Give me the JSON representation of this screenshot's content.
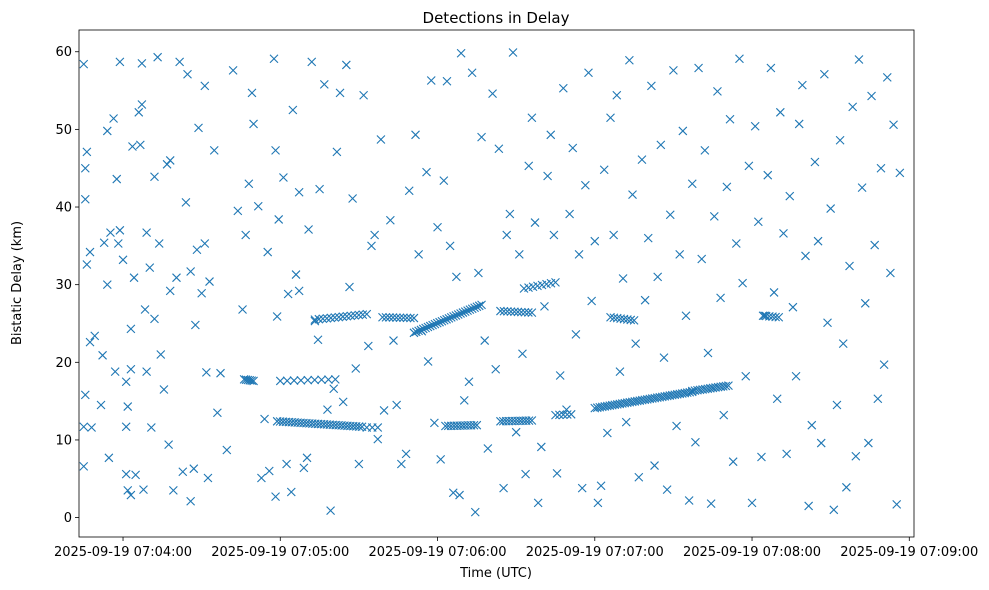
{
  "chart_data": {
    "type": "scatter",
    "title": "Detections in Delay",
    "xlabel": "Time (UTC)",
    "ylabel": "Bistatic Delay (km)",
    "marker": "x",
    "color": "#1f77b4",
    "xlim_minutes": [
      -0.28,
      5.03
    ],
    "ylim": [
      -2.5,
      62.8
    ],
    "x_ticks": [
      {
        "value": 0,
        "label": "2025-09-19 07:04:00"
      },
      {
        "value": 1,
        "label": "2025-09-19 07:05:00"
      },
      {
        "value": 2,
        "label": "2025-09-19 07:06:00"
      },
      {
        "value": 3,
        "label": "2025-09-19 07:07:00"
      },
      {
        "value": 4,
        "label": "2025-09-19 07:08:00"
      },
      {
        "value": 5,
        "label": "2025-09-19 07:09:00"
      }
    ],
    "y_ticks": [
      {
        "value": 0,
        "label": "0"
      },
      {
        "value": 10,
        "label": "10"
      },
      {
        "value": 20,
        "label": "20"
      },
      {
        "value": 30,
        "label": "30"
      },
      {
        "value": 40,
        "label": "40"
      },
      {
        "value": 50,
        "label": "50"
      },
      {
        "value": 60,
        "label": "60"
      }
    ],
    "x_unit": "minutes after 2025-09-19 07:04:00",
    "tracks": [
      {
        "name": "track-a",
        "x_start": 0.77,
        "x_end": 0.83,
        "y_start": 17.8,
        "y_end": 17.6,
        "count": 6
      },
      {
        "name": "track-b",
        "x_start": 1.0,
        "x_end": 1.35,
        "y_start": 17.6,
        "y_end": 17.8,
        "count": 9
      },
      {
        "name": "track-c",
        "x_start": 0.98,
        "x_end": 1.52,
        "y_start": 12.4,
        "y_end": 11.7,
        "count": 30
      },
      {
        "name": "track-d",
        "x_start": 1.22,
        "x_end": 1.55,
        "y_start": 25.5,
        "y_end": 26.2,
        "count": 14
      },
      {
        "name": "track-e",
        "x_start": 1.65,
        "x_end": 1.85,
        "y_start": 25.8,
        "y_end": 25.7,
        "count": 10
      },
      {
        "name": "track-f",
        "x_start": 1.85,
        "x_end": 2.28,
        "y_start": 23.8,
        "y_end": 27.4,
        "count": 30
      },
      {
        "name": "track-g",
        "x_start": 1.55,
        "x_end": 1.62,
        "y_start": 11.6,
        "y_end": 11.6,
        "count": 3
      },
      {
        "name": "track-h",
        "x_start": 2.05,
        "x_end": 2.25,
        "y_start": 11.8,
        "y_end": 11.9,
        "count": 12
      },
      {
        "name": "track-i",
        "x_start": 2.4,
        "x_end": 2.6,
        "y_start": 12.4,
        "y_end": 12.5,
        "count": 12
      },
      {
        "name": "track-j",
        "x_start": 2.4,
        "x_end": 2.6,
        "y_start": 26.6,
        "y_end": 26.4,
        "count": 10
      },
      {
        "name": "track-k",
        "x_start": 2.55,
        "x_end": 2.75,
        "y_start": 29.5,
        "y_end": 30.3,
        "count": 8
      },
      {
        "name": "track-l",
        "x_start": 2.75,
        "x_end": 2.85,
        "y_start": 13.2,
        "y_end": 13.3,
        "count": 5
      },
      {
        "name": "track-m",
        "x_start": 3.1,
        "x_end": 3.25,
        "y_start": 25.8,
        "y_end": 25.4,
        "count": 8
      },
      {
        "name": "track-n",
        "x_start": 3.0,
        "x_end": 3.62,
        "y_start": 14.1,
        "y_end": 16.2,
        "count": 40
      },
      {
        "name": "track-o",
        "x_start": 3.62,
        "x_end": 3.85,
        "y_start": 16.3,
        "y_end": 17.0,
        "count": 15
      },
      {
        "name": "track-p",
        "x_start": 4.07,
        "x_end": 4.17,
        "y_start": 26.0,
        "y_end": 25.8,
        "count": 6
      }
    ],
    "scattered_points": [
      [
        -0.25,
        58.4
      ],
      [
        -0.25,
        11.7
      ],
      [
        -0.24,
        15.8
      ],
      [
        -0.25,
        6.6
      ],
      [
        -0.24,
        41.0
      ],
      [
        -0.24,
        45.0
      ],
      [
        -0.23,
        47.1
      ],
      [
        -0.23,
        32.6
      ],
      [
        -0.21,
        34.2
      ],
      [
        -0.21,
        22.6
      ],
      [
        -0.2,
        11.6
      ],
      [
        -0.18,
        23.4
      ],
      [
        -0.14,
        14.5
      ],
      [
        -0.13,
        20.9
      ],
      [
        -0.12,
        35.4
      ],
      [
        -0.1,
        49.8
      ],
      [
        -0.1,
        30.0
      ],
      [
        -0.09,
        7.7
      ],
      [
        -0.08,
        36.7
      ],
      [
        -0.06,
        51.4
      ],
      [
        -0.05,
        18.8
      ],
      [
        -0.04,
        43.6
      ],
      [
        -0.03,
        35.3
      ],
      [
        -0.02,
        58.7
      ],
      [
        -0.02,
        37.0
      ],
      [
        0.0,
        33.2
      ],
      [
        0.02,
        17.5
      ],
      [
        0.02,
        11.7
      ],
      [
        0.02,
        5.6
      ],
      [
        0.03,
        3.5
      ],
      [
        0.03,
        14.3
      ],
      [
        0.05,
        2.9
      ],
      [
        0.05,
        19.1
      ],
      [
        0.05,
        24.3
      ],
      [
        0.06,
        47.8
      ],
      [
        0.07,
        30.9
      ],
      [
        0.08,
        5.5
      ],
      [
        0.1,
        52.2
      ],
      [
        0.11,
        48.0
      ],
      [
        0.12,
        53.2
      ],
      [
        0.12,
        58.5
      ],
      [
        0.13,
        3.6
      ],
      [
        0.14,
        26.8
      ],
      [
        0.15,
        36.7
      ],
      [
        0.15,
        18.8
      ],
      [
        0.17,
        32.2
      ],
      [
        0.18,
        11.6
      ],
      [
        0.2,
        43.9
      ],
      [
        0.2,
        25.6
      ],
      [
        0.22,
        59.3
      ],
      [
        0.23,
        35.3
      ],
      [
        0.24,
        21.0
      ],
      [
        0.26,
        16.5
      ],
      [
        0.28,
        45.5
      ],
      [
        0.29,
        9.4
      ],
      [
        0.3,
        29.2
      ],
      [
        0.3,
        46.0
      ],
      [
        0.32,
        3.5
      ],
      [
        0.34,
        30.9
      ],
      [
        0.36,
        58.7
      ],
      [
        0.38,
        5.9
      ],
      [
        0.4,
        40.6
      ],
      [
        0.41,
        57.1
      ],
      [
        0.43,
        31.7
      ],
      [
        0.43,
        2.1
      ],
      [
        0.45,
        6.3
      ],
      [
        0.46,
        24.8
      ],
      [
        0.47,
        34.5
      ],
      [
        0.48,
        50.2
      ],
      [
        0.5,
        28.9
      ],
      [
        0.52,
        35.3
      ],
      [
        0.52,
        55.6
      ],
      [
        0.53,
        18.7
      ],
      [
        0.54,
        5.1
      ],
      [
        0.55,
        30.4
      ],
      [
        0.58,
        47.3
      ],
      [
        0.6,
        13.5
      ],
      [
        0.62,
        18.6
      ],
      [
        0.66,
        8.7
      ],
      [
        0.7,
        57.6
      ],
      [
        0.73,
        39.5
      ],
      [
        0.76,
        26.8
      ],
      [
        0.78,
        36.4
      ],
      [
        0.8,
        43.0
      ],
      [
        0.82,
        54.7
      ],
      [
        0.83,
        50.7
      ],
      [
        0.86,
        40.1
      ],
      [
        0.88,
        5.1
      ],
      [
        0.9,
        12.7
      ],
      [
        0.92,
        34.2
      ],
      [
        0.93,
        6.0
      ],
      [
        0.96,
        59.1
      ],
      [
        0.97,
        2.7
      ],
      [
        0.97,
        47.3
      ],
      [
        0.98,
        25.9
      ],
      [
        0.99,
        38.4
      ],
      [
        1.02,
        43.8
      ],
      [
        1.04,
        6.9
      ],
      [
        1.05,
        28.8
      ],
      [
        1.07,
        3.3
      ],
      [
        1.08,
        52.5
      ],
      [
        1.1,
        31.3
      ],
      [
        1.12,
        29.2
      ],
      [
        1.12,
        41.9
      ],
      [
        1.15,
        6.4
      ],
      [
        1.17,
        7.7
      ],
      [
        1.18,
        37.1
      ],
      [
        1.2,
        58.7
      ],
      [
        1.22,
        25.3
      ],
      [
        1.24,
        22.9
      ],
      [
        1.25,
        42.3
      ],
      [
        1.28,
        55.8
      ],
      [
        1.3,
        13.9
      ],
      [
        1.32,
        0.9
      ],
      [
        1.34,
        16.6
      ],
      [
        1.36,
        47.1
      ],
      [
        1.38,
        54.7
      ],
      [
        1.4,
        14.9
      ],
      [
        1.42,
        58.3
      ],
      [
        1.44,
        29.7
      ],
      [
        1.46,
        41.1
      ],
      [
        1.48,
        19.2
      ],
      [
        1.5,
        6.9
      ],
      [
        1.53,
        54.4
      ],
      [
        1.56,
        22.1
      ],
      [
        1.58,
        35.0
      ],
      [
        1.6,
        36.4
      ],
      [
        1.62,
        10.1
      ],
      [
        1.64,
        48.7
      ],
      [
        1.66,
        13.8
      ],
      [
        1.7,
        38.3
      ],
      [
        1.72,
        22.8
      ],
      [
        1.74,
        14.5
      ],
      [
        1.77,
        6.9
      ],
      [
        1.8,
        8.2
      ],
      [
        1.82,
        42.1
      ],
      [
        1.86,
        49.3
      ],
      [
        1.88,
        33.9
      ],
      [
        1.9,
        24.0
      ],
      [
        1.93,
        44.5
      ],
      [
        1.94,
        20.1
      ],
      [
        1.96,
        56.3
      ],
      [
        1.98,
        12.2
      ],
      [
        2.0,
        37.4
      ],
      [
        2.02,
        7.5
      ],
      [
        2.04,
        43.4
      ],
      [
        2.06,
        56.2
      ],
      [
        2.08,
        35.0
      ],
      [
        2.1,
        3.2
      ],
      [
        2.12,
        31.0
      ],
      [
        2.14,
        2.9
      ],
      [
        2.15,
        59.8
      ],
      [
        2.17,
        15.1
      ],
      [
        2.2,
        17.5
      ],
      [
        2.22,
        57.3
      ],
      [
        2.24,
        0.7
      ],
      [
        2.26,
        31.5
      ],
      [
        2.28,
        49.0
      ],
      [
        2.3,
        22.8
      ],
      [
        2.32,
        8.9
      ],
      [
        2.35,
        54.6
      ],
      [
        2.37,
        19.1
      ],
      [
        2.39,
        47.5
      ],
      [
        2.42,
        3.8
      ],
      [
        2.44,
        36.4
      ],
      [
        2.46,
        39.1
      ],
      [
        2.48,
        59.9
      ],
      [
        2.5,
        11.0
      ],
      [
        2.52,
        33.9
      ],
      [
        2.54,
        21.1
      ],
      [
        2.56,
        5.6
      ],
      [
        2.58,
        45.3
      ],
      [
        2.6,
        51.5
      ],
      [
        2.62,
        38.0
      ],
      [
        2.64,
        1.9
      ],
      [
        2.66,
        9.1
      ],
      [
        2.68,
        27.2
      ],
      [
        2.7,
        44.0
      ],
      [
        2.72,
        49.3
      ],
      [
        2.74,
        36.4
      ],
      [
        2.76,
        5.7
      ],
      [
        2.78,
        18.3
      ],
      [
        2.8,
        55.3
      ],
      [
        2.82,
        13.9
      ],
      [
        2.84,
        39.1
      ],
      [
        2.86,
        47.6
      ],
      [
        2.88,
        23.6
      ],
      [
        2.9,
        33.9
      ],
      [
        2.92,
        3.8
      ],
      [
        2.94,
        42.8
      ],
      [
        2.96,
        57.3
      ],
      [
        2.98,
        27.9
      ],
      [
        3.0,
        35.6
      ],
      [
        3.02,
        1.9
      ],
      [
        3.04,
        4.1
      ],
      [
        3.06,
        44.8
      ],
      [
        3.08,
        10.9
      ],
      [
        3.1,
        51.5
      ],
      [
        3.12,
        36.4
      ],
      [
        3.14,
        54.4
      ],
      [
        3.16,
        18.8
      ],
      [
        3.18,
        30.8
      ],
      [
        3.2,
        12.3
      ],
      [
        3.22,
        58.9
      ],
      [
        3.24,
        41.6
      ],
      [
        3.26,
        22.4
      ],
      [
        3.28,
        5.2
      ],
      [
        3.3,
        46.1
      ],
      [
        3.32,
        28.0
      ],
      [
        3.34,
        36.0
      ],
      [
        3.36,
        55.6
      ],
      [
        3.38,
        6.7
      ],
      [
        3.4,
        31.0
      ],
      [
        3.42,
        48.0
      ],
      [
        3.44,
        20.6
      ],
      [
        3.46,
        3.6
      ],
      [
        3.48,
        39.0
      ],
      [
        3.5,
        57.6
      ],
      [
        3.52,
        11.8
      ],
      [
        3.54,
        33.9
      ],
      [
        3.56,
        49.8
      ],
      [
        3.58,
        26.0
      ],
      [
        3.6,
        2.2
      ],
      [
        3.62,
        43.0
      ],
      [
        3.64,
        9.7
      ],
      [
        3.66,
        57.9
      ],
      [
        3.68,
        33.3
      ],
      [
        3.7,
        47.3
      ],
      [
        3.72,
        21.2
      ],
      [
        3.74,
        1.8
      ],
      [
        3.76,
        38.8
      ],
      [
        3.78,
        54.9
      ],
      [
        3.8,
        28.3
      ],
      [
        3.82,
        13.2
      ],
      [
        3.84,
        42.6
      ],
      [
        3.86,
        51.3
      ],
      [
        3.88,
        7.2
      ],
      [
        3.9,
        35.3
      ],
      [
        3.92,
        59.1
      ],
      [
        3.94,
        30.2
      ],
      [
        3.96,
        18.2
      ],
      [
        3.98,
        45.3
      ],
      [
        4.0,
        1.9
      ],
      [
        4.02,
        50.4
      ],
      [
        4.04,
        38.1
      ],
      [
        4.06,
        7.8
      ],
      [
        4.08,
        26.0
      ],
      [
        4.1,
        44.1
      ],
      [
        4.12,
        57.9
      ],
      [
        4.14,
        29.0
      ],
      [
        4.16,
        15.3
      ],
      [
        4.18,
        52.2
      ],
      [
        4.2,
        36.6
      ],
      [
        4.22,
        8.2
      ],
      [
        4.24,
        41.4
      ],
      [
        4.26,
        27.1
      ],
      [
        4.28,
        18.2
      ],
      [
        4.3,
        50.7
      ],
      [
        4.32,
        55.7
      ],
      [
        4.34,
        33.7
      ],
      [
        4.36,
        1.5
      ],
      [
        4.38,
        11.9
      ],
      [
        4.4,
        45.8
      ],
      [
        4.42,
        35.6
      ],
      [
        4.44,
        9.6
      ],
      [
        4.46,
        57.1
      ],
      [
        4.48,
        25.1
      ],
      [
        4.5,
        39.8
      ],
      [
        4.52,
        1.0
      ],
      [
        4.54,
        14.5
      ],
      [
        4.56,
        48.6
      ],
      [
        4.58,
        22.4
      ],
      [
        4.6,
        3.9
      ],
      [
        4.62,
        32.4
      ],
      [
        4.64,
        52.9
      ],
      [
        4.66,
        7.9
      ],
      [
        4.68,
        59.0
      ],
      [
        4.7,
        42.5
      ],
      [
        4.72,
        27.6
      ],
      [
        4.74,
        9.6
      ],
      [
        4.76,
        54.3
      ],
      [
        4.78,
        35.1
      ],
      [
        4.8,
        15.3
      ],
      [
        4.82,
        45.0
      ],
      [
        4.84,
        19.7
      ],
      [
        4.86,
        56.7
      ],
      [
        4.88,
        31.5
      ],
      [
        4.9,
        50.6
      ],
      [
        4.92,
        1.7
      ],
      [
        4.94,
        44.4
      ]
    ]
  }
}
